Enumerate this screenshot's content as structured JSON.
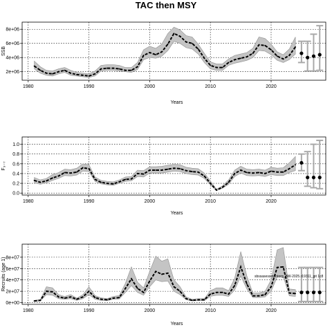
{
  "figure": {
    "title": "TAC then MSY"
  },
  "colors": {
    "band": "#c4c4c4",
    "band_edge": "#8f8f8f",
    "line": "#000000",
    "forecast": "#a9a9a9",
    "grid": "#000000"
  },
  "chart_data": [
    {
      "type": "line",
      "name": "ssb",
      "xlabel": "Years",
      "ylabel": "SSB",
      "xlim": [
        1979,
        2029
      ],
      "ylim": [
        800000,
        9000000
      ],
      "xticks": [
        1980,
        1990,
        2000,
        2010,
        2020
      ],
      "yticks": [
        2000000,
        4000000,
        6000000,
        8000000
      ],
      "ytick_labels": [
        "2e+06",
        "4e+06",
        "6e+06",
        "8e+06"
      ],
      "grid": true,
      "historic": {
        "x": [
          1981,
          1982,
          1983,
          1984,
          1985,
          1986,
          1987,
          1988,
          1989,
          1990,
          1991,
          1992,
          1993,
          1994,
          1995,
          1996,
          1997,
          1998,
          1999,
          2000,
          2001,
          2002,
          2003,
          2004,
          2005,
          2006,
          2007,
          2008,
          2009,
          2010,
          2011,
          2012,
          2013,
          2014,
          2015,
          2016,
          2017,
          2018,
          2019,
          2020,
          2021,
          2022,
          2023,
          2024
        ],
        "median": [
          2800000,
          2200000,
          1800000,
          1700000,
          2000000,
          2200000,
          1800000,
          1600000,
          1500000,
          1400000,
          1700000,
          2400000,
          2500000,
          2500000,
          2400000,
          2200000,
          2200000,
          2700000,
          4300000,
          4700000,
          4400000,
          4800000,
          5900000,
          7400000,
          7000000,
          6200000,
          6000000,
          5200000,
          3900000,
          2900000,
          2600000,
          2600000,
          3300000,
          3700000,
          3900000,
          4100000,
          4600000,
          5800000,
          5700000,
          5100000,
          4200000,
          3800000,
          4300000,
          5500000
        ],
        "lower": [
          2400000,
          1800000,
          1500000,
          1400000,
          1700000,
          1900000,
          1500000,
          1400000,
          1300000,
          1200000,
          1400000,
          2100000,
          2200000,
          2200000,
          2100000,
          2000000,
          1900000,
          2300000,
          3700000,
          4000000,
          3900000,
          4200000,
          5000000,
          6300000,
          6000000,
          5400000,
          5200000,
          4500000,
          3300000,
          2400000,
          2200000,
          2200000,
          2900000,
          3200000,
          3400000,
          3600000,
          4000000,
          5000000,
          4900000,
          4400000,
          3600000,
          3300000,
          3700000,
          4500000
        ],
        "upper": [
          3500000,
          2700000,
          2200000,
          2100000,
          2400000,
          2600000,
          2200000,
          1900000,
          1800000,
          1700000,
          2100000,
          2900000,
          3000000,
          3000000,
          2900000,
          2600000,
          2600000,
          3300000,
          5100000,
          5600000,
          5300000,
          5900000,
          7400000,
          8300000,
          7900000,
          7100000,
          6900000,
          5900000,
          4600000,
          3400000,
          3100000,
          3100000,
          3800000,
          4300000,
          4500000,
          4700000,
          5300000,
          6900000,
          6700000,
          5900000,
          4800000,
          4400000,
          5200000,
          6900000
        ]
      },
      "forecast": {
        "x": [
          2025,
          2026,
          2027,
          2028
        ],
        "median": [
          4600000,
          4000000,
          4200000,
          4400000
        ],
        "lower": [
          3300000,
          2100000,
          2100000,
          2200000
        ],
        "upper": [
          6300000,
          6300000,
          7300000,
          8500000
        ]
      },
      "annotations": []
    },
    {
      "type": "line",
      "name": "fbar",
      "xlabel": "Years",
      "ylabel": "F₃₋₇",
      "xlim": [
        1979,
        2029
      ],
      "ylim": [
        -0.04,
        1.15
      ],
      "xticks": [
        1980,
        1990,
        2000,
        2010,
        2020
      ],
      "yticks": [
        0.0,
        0.2,
        0.4,
        0.6,
        0.8,
        1.0
      ],
      "ytick_labels": [
        "0.0",
        "0.2",
        "0.4",
        "0.6",
        "0.8",
        "1.0"
      ],
      "grid": true,
      "historic": {
        "x": [
          1981,
          1982,
          1983,
          1984,
          1985,
          1986,
          1987,
          1988,
          1989,
          1990,
          1991,
          1992,
          1993,
          1994,
          1995,
          1996,
          1997,
          1998,
          1999,
          2000,
          2001,
          2002,
          2003,
          2004,
          2005,
          2006,
          2007,
          2008,
          2009,
          2010,
          2011,
          2012,
          2013,
          2014,
          2015,
          2016,
          2017,
          2018,
          2019,
          2020,
          2021,
          2022,
          2023,
          2024
        ],
        "median": [
          0.26,
          0.22,
          0.25,
          0.31,
          0.35,
          0.42,
          0.41,
          0.43,
          0.52,
          0.5,
          0.28,
          0.22,
          0.2,
          0.19,
          0.23,
          0.28,
          0.29,
          0.4,
          0.39,
          0.47,
          0.47,
          0.47,
          0.49,
          0.51,
          0.5,
          0.46,
          0.44,
          0.43,
          0.35,
          0.2,
          0.06,
          0.12,
          0.22,
          0.4,
          0.47,
          0.42,
          0.41,
          0.42,
          0.4,
          0.45,
          0.43,
          0.43,
          0.5,
          0.58
        ],
        "lower": [
          0.21,
          0.18,
          0.21,
          0.26,
          0.3,
          0.36,
          0.35,
          0.37,
          0.45,
          0.44,
          0.24,
          0.19,
          0.17,
          0.16,
          0.2,
          0.24,
          0.25,
          0.34,
          0.33,
          0.41,
          0.41,
          0.41,
          0.43,
          0.45,
          0.44,
          0.4,
          0.38,
          0.37,
          0.3,
          0.17,
          0.05,
          0.1,
          0.18,
          0.34,
          0.41,
          0.36,
          0.35,
          0.36,
          0.34,
          0.38,
          0.36,
          0.36,
          0.42,
          0.46
        ],
        "upper": [
          0.32,
          0.27,
          0.3,
          0.38,
          0.42,
          0.49,
          0.48,
          0.51,
          0.6,
          0.58,
          0.33,
          0.26,
          0.24,
          0.23,
          0.27,
          0.33,
          0.34,
          0.47,
          0.46,
          0.54,
          0.54,
          0.55,
          0.57,
          0.59,
          0.58,
          0.53,
          0.51,
          0.5,
          0.41,
          0.25,
          0.08,
          0.15,
          0.27,
          0.47,
          0.55,
          0.49,
          0.48,
          0.49,
          0.47,
          0.53,
          0.51,
          0.52,
          0.62,
          0.75
        ]
      },
      "forecast": {
        "x": [
          2025,
          2026,
          2027,
          2028
        ],
        "median": [
          0.62,
          0.32,
          0.32,
          0.32
        ],
        "lower": [
          0.46,
          0.14,
          0.11,
          0.09
        ],
        "upper": [
          0.8,
          0.85,
          1.0,
          1.08
        ]
      },
      "annotations": []
    },
    {
      "type": "line",
      "name": "recruits",
      "xlabel": "Years",
      "ylabel": "Recruits (age 1)",
      "xlim": [
        1979,
        2029
      ],
      "ylim": [
        -3000000,
        103000000
      ],
      "xticks": [
        1980,
        1990,
        2000,
        2010,
        2020
      ],
      "yticks": [
        0,
        20000000,
        40000000,
        60000000,
        80000000
      ],
      "ytick_labels": [
        "0e+00",
        "2e+07",
        "4e+07",
        "6e+07",
        "8e+07"
      ],
      "grid": true,
      "historic": {
        "x": [
          1981,
          1982,
          1983,
          1984,
          1985,
          1986,
          1987,
          1988,
          1989,
          1990,
          1991,
          1992,
          1993,
          1994,
          1995,
          1996,
          1997,
          1998,
          1999,
          2000,
          2001,
          2002,
          2003,
          2004,
          2005,
          2006,
          2007,
          2008,
          2009,
          2010,
          2011,
          2012,
          2013,
          2014,
          2015,
          2016,
          2017,
          2018,
          2019,
          2020,
          2021,
          2022,
          2023,
          2024
        ],
        "median": [
          3000000,
          4000000,
          20000000,
          19000000,
          10000000,
          8000000,
          10000000,
          6000000,
          10000000,
          20000000,
          9000000,
          6000000,
          5000000,
          8000000,
          9000000,
          25000000,
          42000000,
          25000000,
          18000000,
          38000000,
          55000000,
          50000000,
          52000000,
          28000000,
          20000000,
          7000000,
          4000000,
          5000000,
          5000000,
          15000000,
          18000000,
          18000000,
          15000000,
          30000000,
          63000000,
          33000000,
          12000000,
          12000000,
          14000000,
          28000000,
          62000000,
          63000000,
          17000000,
          16000000
        ],
        "lower": [
          2000000,
          3000000,
          14000000,
          13000000,
          7000000,
          6000000,
          7000000,
          4000000,
          7000000,
          14000000,
          6000000,
          4000000,
          3500000,
          6000000,
          6500000,
          18000000,
          30000000,
          18000000,
          13000000,
          28000000,
          40000000,
          37000000,
          38000000,
          20000000,
          14000000,
          5000000,
          3000000,
          3500000,
          3500000,
          11000000,
          13000000,
          13000000,
          11000000,
          22000000,
          47000000,
          24000000,
          9000000,
          9000000,
          10000000,
          20000000,
          45000000,
          46000000,
          12000000,
          11000000
        ],
        "upper": [
          4000000,
          5500000,
          28000000,
          26000000,
          14000000,
          11000000,
          14000000,
          8000000,
          14000000,
          28000000,
          12500000,
          8500000,
          7000000,
          11000000,
          12500000,
          34000000,
          63000000,
          36000000,
          26000000,
          55000000,
          82000000,
          73000000,
          77000000,
          40000000,
          28000000,
          10000000,
          6000000,
          7000000,
          7000000,
          21000000,
          26000000,
          26000000,
          21000000,
          43000000,
          90000000,
          47000000,
          17000000,
          17000000,
          20000000,
          40000000,
          93000000,
          97000000,
          24000000,
          23000000
        ]
      },
      "forecast": {
        "x": [
          2025,
          2026,
          2027,
          2028
        ],
        "median": [
          18000000,
          18000000,
          18000000,
          18000000
        ],
        "lower": [
          2000000,
          2000000,
          2000000,
          2000000
        ],
        "upper": [
          62000000,
          62000000,
          62000000,
          62000000
        ]
      },
      "annotations": [
        "sbssasessmentorg_BW-2025.r19311_git 1c8"
      ]
    }
  ]
}
